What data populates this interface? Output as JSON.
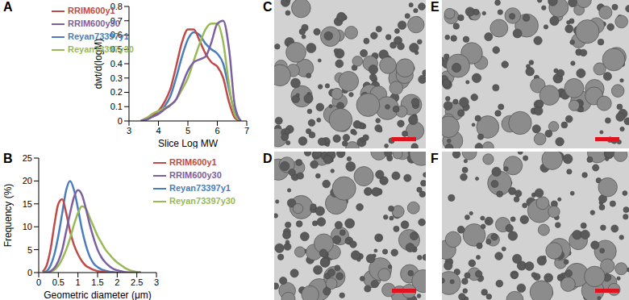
{
  "chart_data": [
    {
      "type": "line",
      "title": "A",
      "x_label": "Slice Log MW",
      "y_label": "dwt/d(logM)",
      "x": [
        3.4,
        3.6,
        3.8,
        4.0,
        4.2,
        4.4,
        4.6,
        4.8,
        5.0,
        5.2,
        5.4,
        5.6,
        5.8,
        6.0,
        6.2,
        6.4,
        6.6,
        6.8
      ],
      "series": [
        {
          "name": "Reyan73397y1",
          "color": "#4a7ebb",
          "values": [
            0,
            0.01,
            0.03,
            0.05,
            0.1,
            0.17,
            0.3,
            0.45,
            0.57,
            0.62,
            0.6,
            0.54,
            0.5,
            0.47,
            0.4,
            0.22,
            0.05,
            0
          ]
        },
        {
          "name": "RRIM600y1",
          "color": "#be4b48",
          "values": [
            0,
            0.02,
            0.04,
            0.07,
            0.13,
            0.22,
            0.38,
            0.55,
            0.64,
            0.64,
            0.56,
            0.47,
            0.41,
            0.38,
            0.3,
            0.13,
            0.02,
            0
          ]
        },
        {
          "name": "Reyan73397y30",
          "color": "#98b954",
          "values": [
            0,
            0.02,
            0.05,
            0.07,
            0.09,
            0.11,
            0.15,
            0.22,
            0.3,
            0.42,
            0.54,
            0.64,
            0.68,
            0.68,
            0.55,
            0.25,
            0.04,
            0
          ]
        },
        {
          "name": "RRIM600y30",
          "color": "#7d60a0",
          "values": [
            0,
            0.01,
            0.03,
            0.05,
            0.08,
            0.11,
            0.15,
            0.25,
            0.35,
            0.41,
            0.43,
            0.45,
            0.55,
            0.68,
            0.7,
            0.5,
            0.1,
            0
          ]
        }
      ],
      "xlim": [
        3,
        7
      ],
      "xticks": [
        3,
        4,
        5,
        6,
        7
      ],
      "ylim": [
        0,
        0.8
      ],
      "yticks": [
        0,
        0.1,
        0.2,
        0.3,
        0.4,
        0.5,
        0.6,
        0.7,
        0.8
      ],
      "grid": false,
      "legend": "upper left"
    },
    {
      "type": "line",
      "title": "B",
      "x_label": "Geometric diameter (μm)",
      "y_label": "Frequency (%)",
      "x": [
        0.1,
        0.2,
        0.3,
        0.4,
        0.5,
        0.6,
        0.7,
        0.8,
        0.9,
        1.0,
        1.1,
        1.2,
        1.3,
        1.4,
        1.5,
        1.6,
        1.7,
        1.8,
        1.9,
        2.0,
        2.1,
        2.2,
        2.3,
        2.4,
        2.5,
        2.6
      ],
      "series": [
        {
          "name": "Reyan73397y1",
          "color": "#4a7ebb",
          "values": [
            0,
            0.3,
            1.5,
            4,
            8,
            13,
            18,
            20,
            18,
            14,
            9.5,
            6,
            3.5,
            2,
            1.2,
            0.7,
            0.4,
            0.2,
            0.1,
            0,
            0,
            0,
            0,
            0,
            0,
            0
          ]
        },
        {
          "name": "RRIM600y1",
          "color": "#be4b48",
          "values": [
            0.2,
            1.5,
            5,
            10.5,
            15,
            16,
            13,
            9,
            6,
            4,
            2.5,
            1.5,
            1,
            0.6,
            0.3,
            0.2,
            0.1,
            0,
            0,
            0,
            0,
            0,
            0,
            0,
            0,
            0
          ]
        },
        {
          "name": "Reyan73397y30",
          "color": "#98b954",
          "values": [
            0,
            0,
            0.2,
            0.6,
            1.5,
            3,
            5,
            7.5,
            10.5,
            13,
            14.5,
            14,
            12,
            10,
            8,
            6.5,
            5,
            4,
            3,
            2.2,
            1.6,
            1,
            0.6,
            0.3,
            0.1,
            0
          ]
        },
        {
          "name": "RRIM600y30",
          "color": "#7d60a0",
          "values": [
            0,
            0,
            0.3,
            1,
            2.5,
            5,
            9,
            13,
            16.5,
            18,
            17,
            14,
            10.5,
            7.5,
            5,
            3.3,
            2.2,
            1.4,
            0.8,
            0.5,
            0.3,
            0.1,
            0,
            0,
            0,
            0
          ]
        }
      ],
      "xlim": [
        0,
        3
      ],
      "xticks": [
        0,
        0.5,
        1,
        1.5,
        2,
        2.5,
        3
      ],
      "ylim": [
        0,
        25
      ],
      "yticks": [
        0,
        5,
        10,
        15,
        20,
        25
      ],
      "grid": false,
      "legend": "upper right"
    }
  ],
  "images": [
    {
      "label": "C"
    },
    {
      "label": "D"
    },
    {
      "label": "E"
    },
    {
      "label": "F"
    }
  ]
}
